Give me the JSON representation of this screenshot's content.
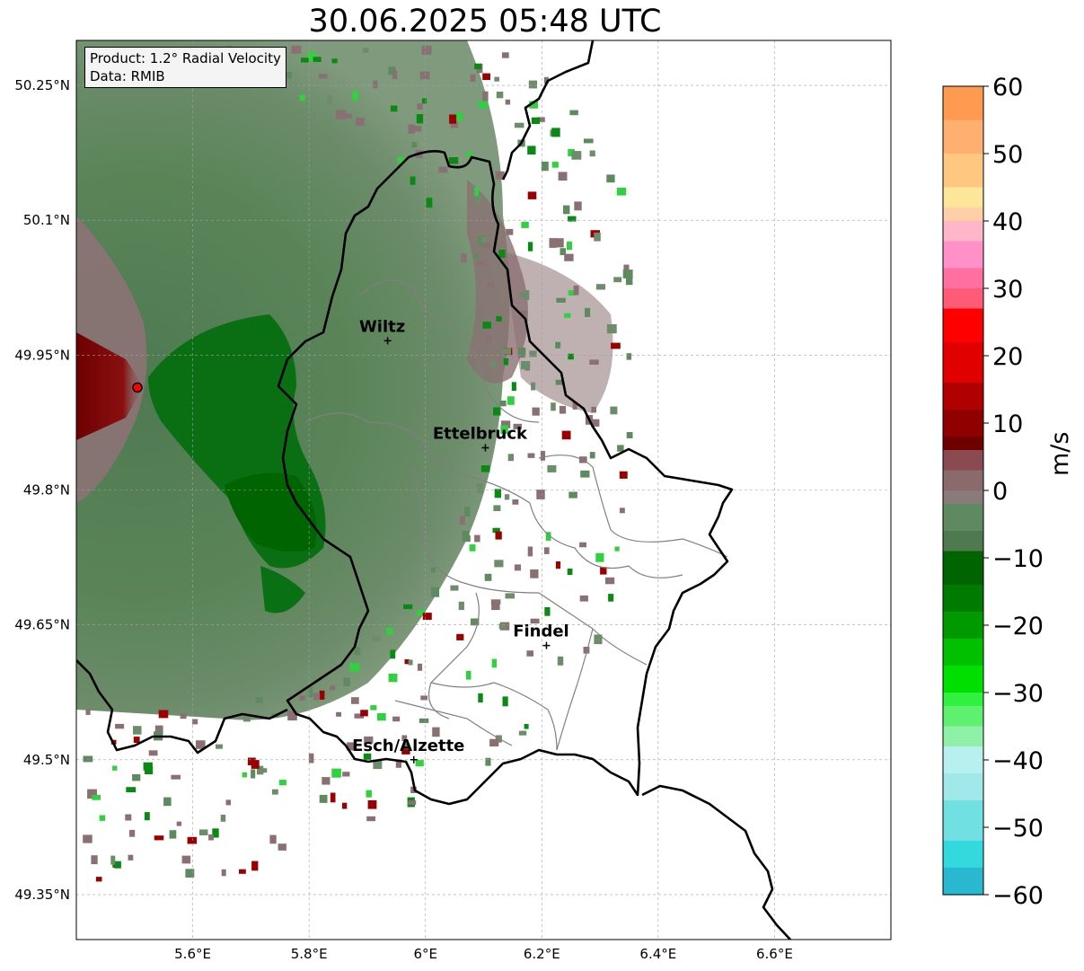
{
  "map": {
    "title": "30.06.2025 05:48 UTC",
    "info": {
      "product": "Product: 1.2° Radial Velocity",
      "data": "Data: RMIB"
    },
    "lon_ticks": [
      {
        "value": 5.6,
        "label": "5.6°E"
      },
      {
        "value": 5.8,
        "label": "5.8°E"
      },
      {
        "value": 6.0,
        "label": "6°E"
      },
      {
        "value": 6.2,
        "label": "6.2°E"
      },
      {
        "value": 6.4,
        "label": "6.4°E"
      },
      {
        "value": 6.6,
        "label": "6.6°E"
      }
    ],
    "lat_ticks": [
      {
        "value": 50.25,
        "label": "50.25°N"
      },
      {
        "value": 50.1,
        "label": "50.1°N"
      },
      {
        "value": 49.95,
        "label": "49.95°N"
      },
      {
        "value": 49.8,
        "label": "49.8°N"
      },
      {
        "value": 49.65,
        "label": "49.65°N"
      },
      {
        "value": 49.5,
        "label": "49.5°N"
      },
      {
        "value": 49.35,
        "label": "49.35°N"
      }
    ],
    "extent": {
      "lon_min": 5.4,
      "lon_max": 6.8,
      "lat_min": 49.3,
      "lat_max": 50.3
    },
    "grid": true,
    "radar_site": {
      "lon": 5.505,
      "lat": 49.914
    },
    "cities": [
      {
        "name": "Wiltz",
        "lon": 5.935,
        "lat": 49.966
      },
      {
        "name": "Ettelbruck",
        "lon": 6.103,
        "lat": 49.847
      },
      {
        "name": "Findel",
        "lon": 6.208,
        "lat": 49.627
      },
      {
        "name": "Esch/Alzette",
        "lon": 5.98,
        "lat": 49.5
      }
    ]
  },
  "colorbar": {
    "unit": "m/s",
    "min": -60,
    "max": 60,
    "ticks": [
      {
        "value": 60,
        "label": "60"
      },
      {
        "value": 50,
        "label": "50"
      },
      {
        "value": 40,
        "label": "40"
      },
      {
        "value": 30,
        "label": "30"
      },
      {
        "value": 20,
        "label": "20"
      },
      {
        "value": 10,
        "label": "10"
      },
      {
        "value": 0,
        "label": "0"
      },
      {
        "value": -10,
        "label": "−10"
      },
      {
        "value": -20,
        "label": "−20"
      },
      {
        "value": -30,
        "label": "−30"
      },
      {
        "value": -40,
        "label": "−40"
      },
      {
        "value": -50,
        "label": "−50"
      },
      {
        "value": -60,
        "label": "−60"
      }
    ],
    "colors": {
      "blue": "#2a88c8",
      "cyan": "#33d9dd",
      "lightcyan": "#b8f0f0",
      "lightgreen": "#8ff0a8",
      "green": "#00e000",
      "darkgreen": "#006400",
      "gray_green": "#5f8a60",
      "gray_red": "#8a6a6a",
      "darkred": "#6e0000",
      "red": "#ff0000",
      "pink": "#ff5a78",
      "lightpink": "#ffb6c8",
      "yellow": "#fde59a",
      "orange": "#ff9a50"
    }
  }
}
